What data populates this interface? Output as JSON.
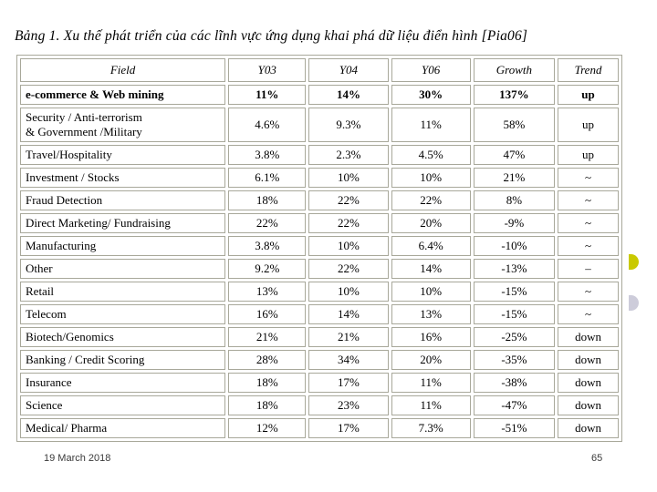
{
  "slide": {
    "title": "Bảng 1. Xu thế phát triển của các lĩnh vực ứng dụng khai phá dữ liệu điển hình [Pia06]",
    "footer": {
      "date": "19 March 2018",
      "page_number": "65"
    }
  },
  "decorations": {
    "yellow_bullet_color": "#c9c900",
    "gray_bullet_color": "#cdccda",
    "table_border_color": "#a8a89a"
  },
  "table": {
    "columns": [
      "Field",
      "Y03",
      "Y04",
      "Y06",
      "Growth",
      "Trend"
    ],
    "rows": [
      {
        "field": "e-commerce & Web mining",
        "y03": "11%",
        "y04": "14%",
        "y06": "30%",
        "growth": "137%",
        "trend": "up",
        "bold": true
      },
      {
        "field": "Security / Anti-terrorism\n& Government /Military",
        "y03": "4.6%",
        "y04": "9.3%",
        "y06": "11%",
        "growth": "58%",
        "trend": "up",
        "bold": false
      },
      {
        "field": "Travel/Hospitality",
        "y03": "3.8%",
        "y04": "2.3%",
        "y06": "4.5%",
        "growth": "47%",
        "trend": "up",
        "bold": false
      },
      {
        "field": "Investment / Stocks",
        "y03": "6.1%",
        "y04": "10%",
        "y06": "10%",
        "growth": "21%",
        "trend": "~",
        "bold": false
      },
      {
        "field": "Fraud Detection",
        "y03": "18%",
        "y04": "22%",
        "y06": "22%",
        "growth": "8%",
        "trend": "~",
        "bold": false
      },
      {
        "field": "Direct Marketing/ Fundraising",
        "y03": "22%",
        "y04": "22%",
        "y06": "20%",
        "growth": "-9%",
        "trend": "~",
        "bold": false
      },
      {
        "field": "Manufacturing",
        "y03": "3.8%",
        "y04": "10%",
        "y06": "6.4%",
        "growth": "-10%",
        "trend": "~",
        "bold": false
      },
      {
        "field": "Other",
        "y03": "9.2%",
        "y04": "22%",
        "y06": "14%",
        "growth": "-13%",
        "trend": "–",
        "bold": false
      },
      {
        "field": "Retail",
        "y03": "13%",
        "y04": "10%",
        "y06": "10%",
        "growth": "-15%",
        "trend": "~",
        "bold": false
      },
      {
        "field": "Telecom",
        "y03": "16%",
        "y04": "14%",
        "y06": "13%",
        "growth": "-15%",
        "trend": "~",
        "bold": false
      },
      {
        "field": "Biotech/Genomics",
        "y03": "21%",
        "y04": "21%",
        "y06": "16%",
        "growth": "-25%",
        "trend": "down",
        "bold": false
      },
      {
        "field": "Banking / Credit Scoring",
        "y03": "28%",
        "y04": "34%",
        "y06": "20%",
        "growth": "-35%",
        "trend": "down",
        "bold": false
      },
      {
        "field": "Insurance",
        "y03": "18%",
        "y04": "17%",
        "y06": "11%",
        "growth": "-38%",
        "trend": "down",
        "bold": false
      },
      {
        "field": "Science",
        "y03": "18%",
        "y04": "23%",
        "y06": "11%",
        "growth": "-47%",
        "trend": "down",
        "bold": false
      },
      {
        "field": "Medical/ Pharma",
        "y03": "12%",
        "y04": "17%",
        "y06": "7.3%",
        "growth": "-51%",
        "trend": "down",
        "bold": false
      }
    ]
  }
}
